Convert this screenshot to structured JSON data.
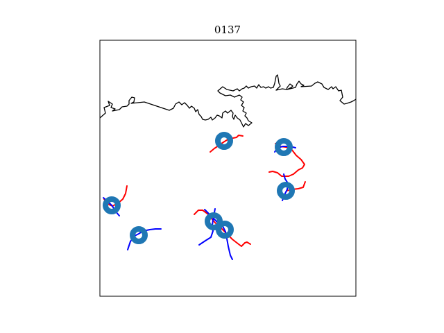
{
  "figure": {
    "title": "0137"
  },
  "colors": {
    "marker": "#1f77b4",
    "track_red": "#ff0000",
    "track_blue": "#0000ff",
    "coastline": "#000000",
    "frame": "#000000"
  },
  "map": {
    "markers": [
      {
        "name": "marker-1",
        "label": ""
      },
      {
        "name": "marker-2",
        "label": ""
      },
      {
        "name": "marker-3",
        "label": ""
      },
      {
        "name": "marker-4",
        "label": ""
      },
      {
        "name": "marker-5",
        "label": ""
      },
      {
        "name": "marker-6",
        "label": ""
      },
      {
        "name": "marker-7",
        "label": ""
      },
      {
        "name": "marker-8",
        "label": ""
      }
    ]
  }
}
